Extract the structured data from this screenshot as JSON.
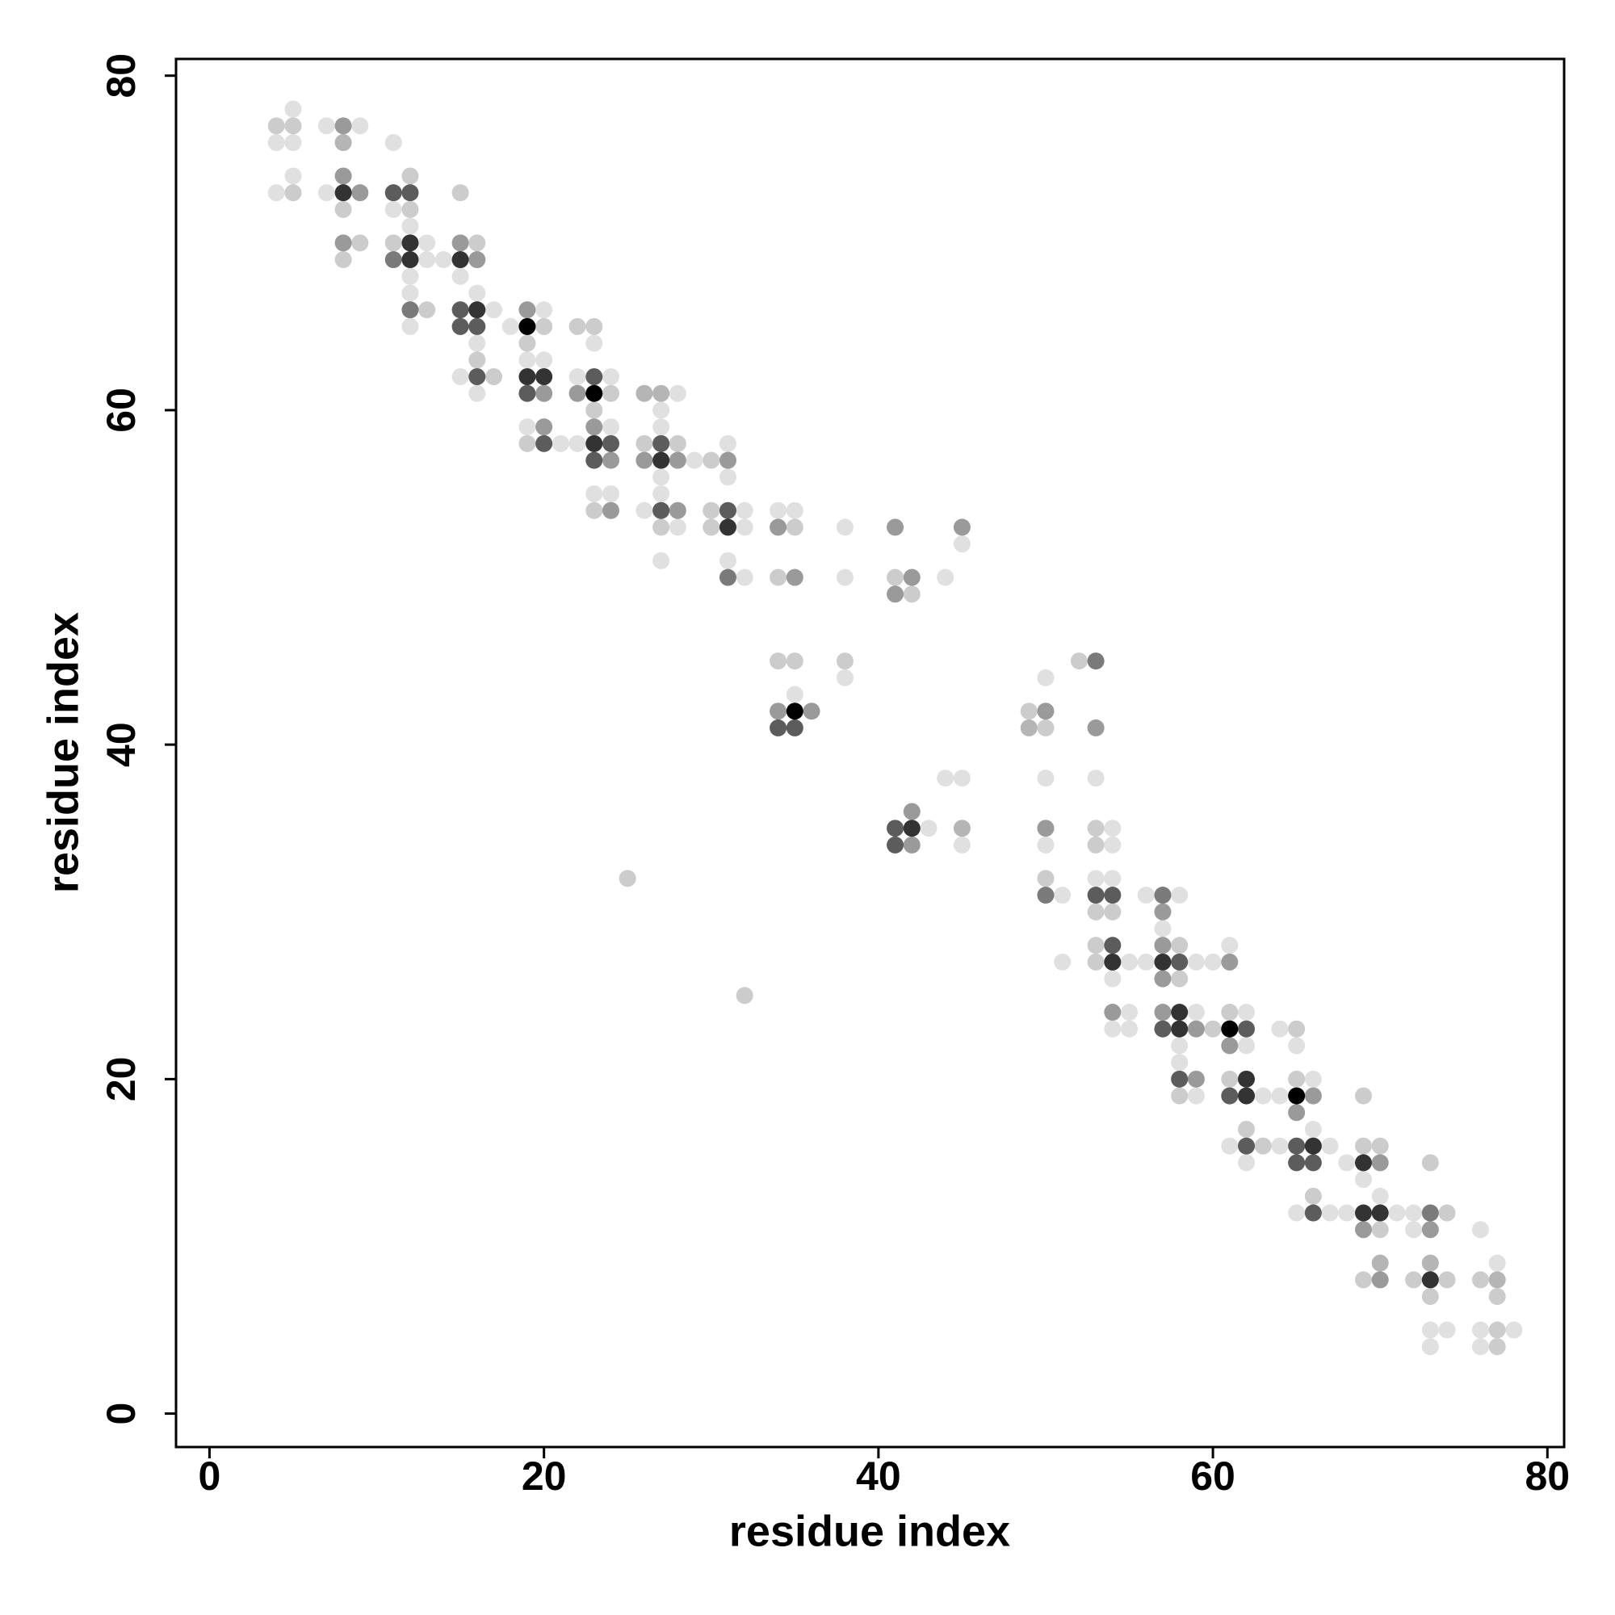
{
  "chart_data": {
    "type": "scatter",
    "xlabel": "residue index",
    "ylabel": "residue index",
    "xlim": [
      -2,
      81
    ],
    "ylim": [
      -2,
      81
    ],
    "xticks": [
      0,
      20,
      40,
      60,
      80
    ],
    "yticks": [
      0,
      20,
      40,
      60,
      80
    ],
    "series": [
      {
        "color": "#e0e0e0",
        "x": [
          5,
          7,
          9,
          4,
          5,
          11,
          5,
          4,
          7,
          11,
          12,
          13,
          13,
          14,
          12,
          15,
          12,
          16,
          17,
          20,
          12,
          18,
          16,
          23,
          19,
          20,
          15,
          22,
          24,
          16,
          28,
          27,
          19,
          24,
          27,
          21,
          22,
          31,
          29,
          27,
          31,
          23,
          24,
          27,
          26,
          32,
          34,
          35,
          28,
          32,
          38,
          45,
          27,
          31,
          32,
          38,
          44,
          38,
          50,
          35,
          44,
          45,
          50,
          53,
          43,
          54,
          45,
          50,
          54,
          53,
          54,
          51,
          56,
          58,
          57,
          61,
          51,
          55,
          56,
          59,
          60,
          54,
          55,
          59,
          62,
          54,
          55,
          64,
          58,
          62,
          65,
          58,
          66,
          59,
          63,
          64,
          66,
          61,
          64,
          67,
          62,
          68,
          69,
          70,
          65,
          67,
          68,
          71,
          72,
          72,
          76,
          77,
          73,
          74,
          76,
          78,
          73,
          76
        ],
        "values": [
          78,
          77,
          77,
          76,
          76,
          76,
          74,
          73,
          73,
          72,
          71,
          70,
          69,
          69,
          68,
          68,
          67,
          67,
          66,
          66,
          65,
          65,
          64,
          64,
          63,
          63,
          62,
          62,
          62,
          61,
          61,
          60,
          59,
          59,
          59,
          58,
          58,
          58,
          57,
          56,
          56,
          55,
          55,
          55,
          54,
          54,
          54,
          54,
          53,
          53,
          53,
          52,
          51,
          51,
          50,
          50,
          50,
          44,
          44,
          43,
          38,
          38,
          38,
          38,
          35,
          35,
          34,
          34,
          34,
          32,
          32,
          31,
          31,
          31,
          29,
          28,
          27,
          27,
          27,
          27,
          27,
          26,
          24,
          24,
          24,
          23,
          23,
          23,
          22,
          22,
          22,
          21,
          20,
          19,
          19,
          19,
          17,
          16,
          16,
          16,
          15,
          15,
          14,
          13,
          12,
          12,
          12,
          12,
          12,
          11,
          11,
          9,
          5,
          5,
          5,
          5,
          4,
          4
        ]
      },
      {
        "color": "#cccccc",
        "x": [
          4,
          5,
          12,
          5,
          15,
          8,
          12,
          9,
          11,
          16,
          8,
          13,
          20,
          22,
          23,
          19,
          16,
          17,
          24,
          23,
          19,
          26,
          28,
          30,
          23,
          30,
          27,
          30,
          35,
          34,
          41,
          42,
          34,
          35,
          38,
          52,
          49,
          50,
          53,
          53,
          25,
          50,
          53,
          54,
          53,
          58,
          53,
          58,
          32,
          61,
          60,
          65,
          61,
          65,
          58,
          69,
          62,
          63,
          69,
          70,
          73,
          66,
          74,
          70,
          69,
          72,
          74,
          76,
          73,
          77,
          77,
          77
        ],
        "values": [
          77,
          77,
          74,
          73,
          73,
          72,
          72,
          70,
          70,
          70,
          69,
          66,
          65,
          65,
          65,
          64,
          63,
          62,
          61,
          60,
          58,
          58,
          58,
          57,
          54,
          54,
          53,
          53,
          53,
          50,
          50,
          49,
          45,
          45,
          45,
          45,
          42,
          41,
          35,
          34,
          32,
          32,
          30,
          30,
          28,
          28,
          27,
          26,
          25,
          24,
          23,
          23,
          20,
          20,
          19,
          19,
          17,
          16,
          16,
          16,
          15,
          13,
          12,
          11,
          8,
          8,
          8,
          8,
          7,
          7,
          5,
          4
        ]
      },
      {
        "color": "#b5b5b5",
        "x": [
          8,
          26,
          27,
          49,
          45,
          70,
          73,
          77
        ],
        "values": [
          76,
          61,
          61,
          41,
          35,
          9,
          9,
          8
        ]
      },
      {
        "color": "#9a9a9a",
        "x": [
          8,
          8,
          9,
          8,
          15,
          16,
          19,
          20,
          22,
          20,
          23,
          24,
          26,
          28,
          31,
          24,
          28,
          34,
          41,
          45,
          35,
          42,
          41,
          34,
          36,
          50,
          53,
          42,
          50,
          42,
          57,
          57,
          61,
          57,
          54,
          57,
          59,
          61,
          59,
          66,
          65,
          70,
          69,
          73,
          70
        ],
        "values": [
          77,
          74,
          73,
          70,
          70,
          69,
          66,
          61,
          61,
          59,
          59,
          57,
          57,
          57,
          57,
          54,
          54,
          53,
          53,
          53,
          50,
          50,
          49,
          42,
          42,
          42,
          41,
          36,
          35,
          34,
          30,
          28,
          27,
          26,
          24,
          24,
          23,
          22,
          20,
          19,
          18,
          15,
          11,
          11,
          8
        ]
      },
      {
        "color": "#7a7a7a",
        "x": [
          11,
          12,
          31,
          53,
          50,
          57,
          73
        ],
        "values": [
          69,
          66,
          50,
          45,
          31,
          31,
          12
        ]
      },
      {
        "color": "#5c5c5c",
        "x": [
          11,
          12,
          15,
          15,
          16,
          16,
          23,
          19,
          20,
          24,
          27,
          23,
          27,
          31,
          34,
          35,
          41,
          41,
          53,
          54,
          54,
          58,
          57,
          62,
          58,
          61,
          62,
          65,
          65,
          66,
          66
        ],
        "values": [
          73,
          73,
          66,
          65,
          65,
          62,
          62,
          61,
          58,
          58,
          58,
          57,
          54,
          54,
          41,
          41,
          35,
          34,
          31,
          31,
          28,
          27,
          23,
          23,
          20,
          19,
          16,
          16,
          15,
          15,
          12
        ]
      },
      {
        "color": "#333333",
        "x": [
          8,
          12,
          12,
          15,
          16,
          19,
          20,
          23,
          27,
          31,
          42,
          54,
          57,
          58,
          58,
          62,
          62,
          66,
          69,
          69,
          70,
          73
        ],
        "values": [
          73,
          70,
          69,
          69,
          66,
          62,
          62,
          58,
          57,
          53,
          35,
          27,
          27,
          24,
          23,
          20,
          19,
          16,
          15,
          12,
          12,
          8
        ]
      },
      {
        "color": "#000000",
        "x": [
          19,
          23,
          35,
          61,
          65
        ],
        "values": [
          65,
          61,
          42,
          23,
          19
        ]
      }
    ]
  }
}
